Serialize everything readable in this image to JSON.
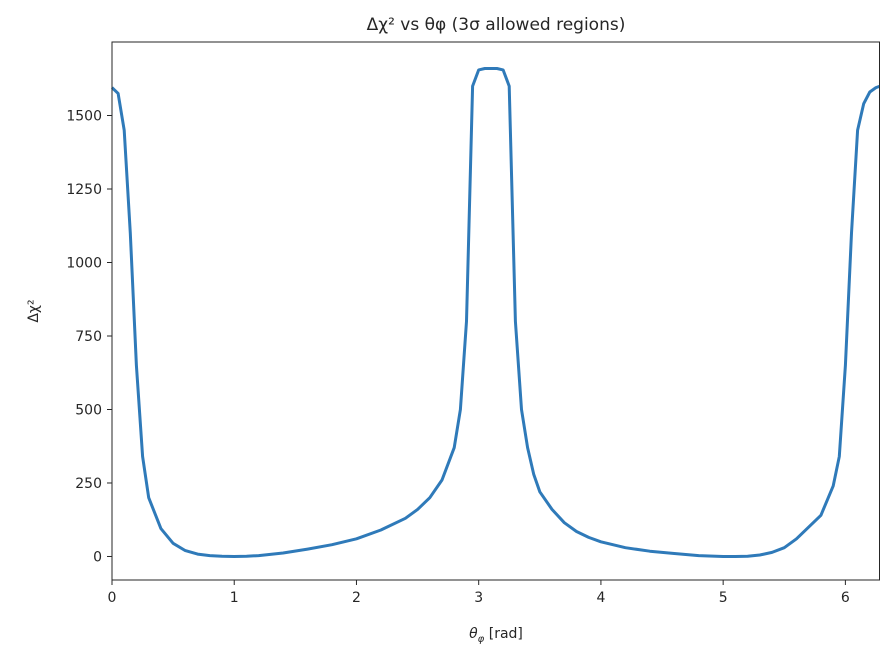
{
  "chart_data": {
    "type": "line",
    "title": "Δχ² vs θφ (3σ allowed regions)",
    "xlabel": "θ_φ [rad]",
    "xlabel_main": "θ",
    "xlabel_sub": "φ",
    "xlabel_unit": " [rad]",
    "ylabel": "Δχ²",
    "xlim": [
      0,
      6.2832
    ],
    "ylim": [
      -80,
      1750
    ],
    "xticks": [
      0,
      1,
      2,
      3,
      4,
      5,
      6
    ],
    "xtick_labels": [
      "0",
      "1",
      "2",
      "3",
      "4",
      "5",
      "6"
    ],
    "yticks": [
      0,
      250,
      500,
      750,
      1000,
      1250,
      1500
    ],
    "ytick_labels": [
      "0",
      "250",
      "500",
      "750",
      "1000",
      "1250",
      "1500"
    ],
    "grid": false,
    "line_color": "#2f7ab9",
    "series": [
      {
        "x": [
          0,
          0.05,
          0.1,
          0.15,
          0.2,
          0.25,
          0.3,
          0.4,
          0.5,
          0.6,
          0.7,
          0.8,
          0.9,
          1.0,
          1.1,
          1.2,
          1.4,
          1.6,
          1.8,
          2.0,
          2.2,
          2.4,
          2.5,
          2.6,
          2.7,
          2.8,
          2.85,
          2.9,
          2.95,
          3.0,
          3.05,
          3.1,
          3.15,
          3.2,
          3.25,
          3.3,
          3.35,
          3.4,
          3.45,
          3.5,
          3.6,
          3.7,
          3.8,
          3.9,
          4.0,
          4.2,
          4.4,
          4.6,
          4.8,
          5.0,
          5.1,
          5.2,
          5.3,
          5.4,
          5.5,
          5.6,
          5.7,
          5.8,
          5.9,
          5.95,
          6.0,
          6.05,
          6.1,
          6.15,
          6.2,
          6.25,
          6.2832
        ],
        "y": [
          1595,
          1575,
          1450,
          1100,
          650,
          340,
          200,
          95,
          45,
          20,
          8,
          3,
          1,
          0,
          1,
          3,
          12,
          25,
          40,
          60,
          90,
          130,
          160,
          200,
          260,
          370,
          500,
          800,
          1600,
          1655,
          1660,
          1660,
          1660,
          1655,
          1600,
          800,
          500,
          370,
          280,
          220,
          160,
          115,
          85,
          65,
          50,
          30,
          18,
          10,
          3,
          0,
          0,
          1,
          5,
          14,
          30,
          60,
          100,
          140,
          240,
          340,
          650,
          1100,
          1450,
          1540,
          1580,
          1595,
          1600
        ]
      }
    ]
  }
}
